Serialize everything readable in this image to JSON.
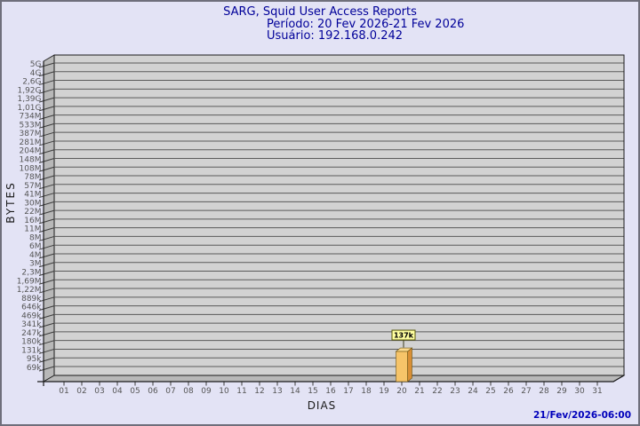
{
  "header": {
    "title": "SARG, Squid User Access Reports",
    "period": "Período: 20 Fev 2026-21 Fev 2026",
    "user": "Usuário: 192.168.0.242"
  },
  "chart_data": {
    "type": "bar",
    "title": "SARG, Squid User Access Reports",
    "xlabel": "DIAS",
    "ylabel": "BYTES",
    "y_axis_scale": "logarithmic",
    "y_tick_labels": [
      "5G",
      "4G",
      "2,6G",
      "1,92G",
      "1,39G",
      "1,01G",
      "734M",
      "533M",
      "387M",
      "281M",
      "204M",
      "148M",
      "108M",
      "78M",
      "57M",
      "41M",
      "30M",
      "22M",
      "16M",
      "11M",
      "8M",
      "6M",
      "4M",
      "3M",
      "2,3M",
      "1,69M",
      "1,22M",
      "889k",
      "646k",
      "469k",
      "341k",
      "247k",
      "180k",
      "131k",
      "95k",
      "69k"
    ],
    "y_axis_bottom_value_bytes": 69000,
    "y_axis_top_value_bytes": 5000000000,
    "x_tick_labels": [
      "01",
      "02",
      "03",
      "04",
      "05",
      "06",
      "07",
      "08",
      "09",
      "10",
      "11",
      "12",
      "13",
      "14",
      "15",
      "16",
      "17",
      "18",
      "19",
      "20",
      "21",
      "22",
      "23",
      "24",
      "25",
      "26",
      "27",
      "28",
      "29",
      "30",
      "31"
    ],
    "bars": [
      {
        "day": "20",
        "value_bytes": 137000,
        "value_label": "137k"
      }
    ],
    "legend": null,
    "grid": true,
    "colors": {
      "background": "#e3e3f5",
      "plot_wall": "#d2d2d2",
      "plot_wall_side": "#b8b8b8",
      "gridline": "#5a5a5a",
      "title_text": "#000099",
      "timestamp_text": "#0000bb",
      "bar_front": "#f6c469",
      "bar_side": "#d98f35",
      "bar_top": "#fbda8e",
      "value_box_bg": "#ffffa0",
      "value_box_border": "#55550a"
    }
  },
  "footer": {
    "timestamp": "21/Fev/2026-06:00"
  }
}
